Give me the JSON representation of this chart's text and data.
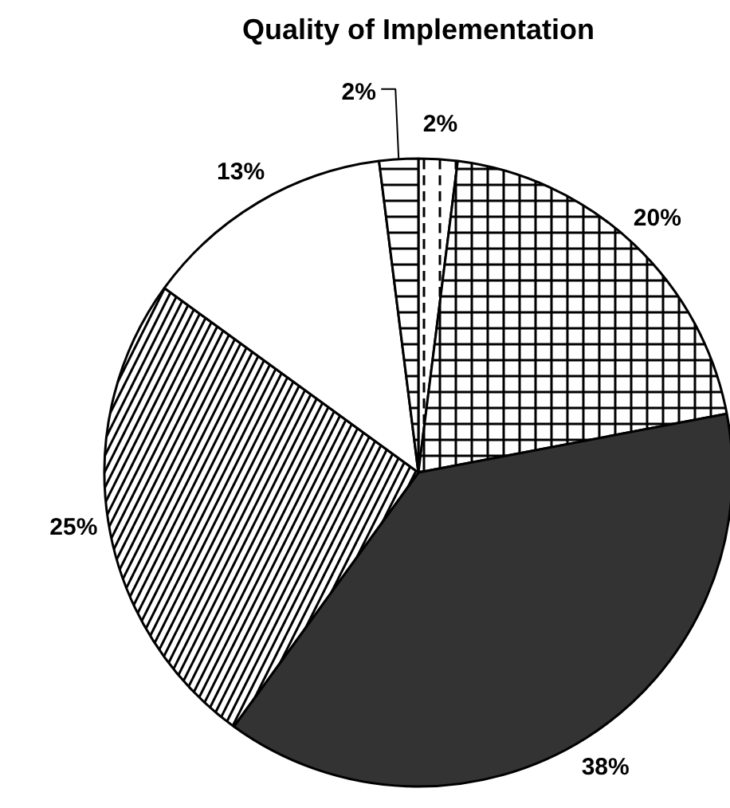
{
  "chart_data": {
    "type": "pie",
    "title": "Quality of Implementation",
    "categories": [
      null,
      null,
      null,
      null,
      null,
      null
    ],
    "values": [
      2,
      20,
      38,
      25,
      13,
      2
    ],
    "colors": [
      "#ffffff",
      "#ffffff",
      "#333333",
      "#ffffff",
      "#ffffff",
      "#ffffff"
    ],
    "value_labels": [
      "2%",
      "20%",
      "38%",
      "25%",
      "13%",
      "2%"
    ]
  }
}
